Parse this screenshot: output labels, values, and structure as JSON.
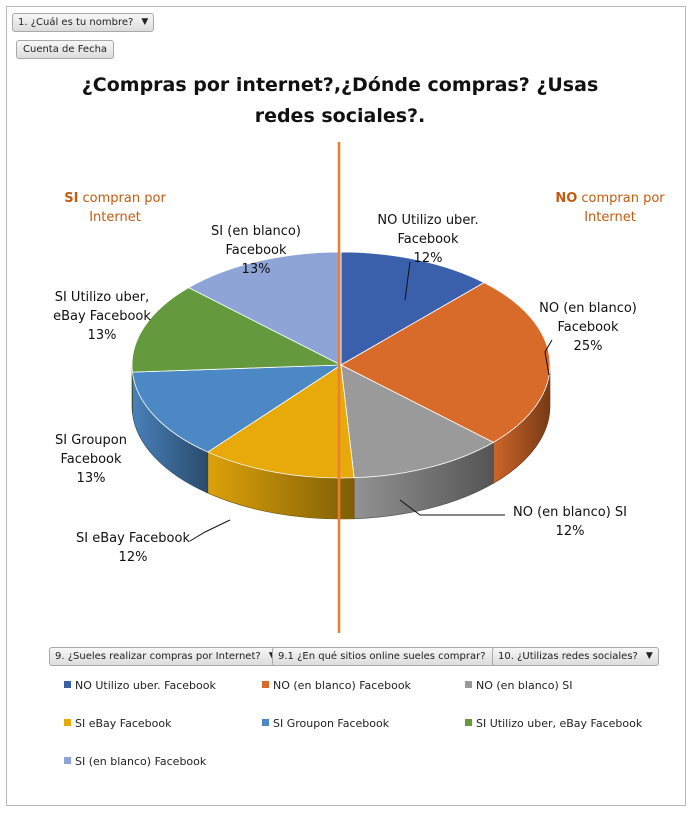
{
  "filters": {
    "top_field": "1. ¿Cuál es tu nombre?",
    "values_field": "Cuenta de Fecha",
    "axis_fields": [
      "9. ¿Sueles realizar compras por Internet?",
      "9.1 ¿En qué sitios online sueles comprar?",
      "10. ¿Utilizas redes sociales?"
    ]
  },
  "annotations": {
    "si_bold": "SI",
    "si_rest": " compran  por",
    "si_line2": "Internet",
    "no_bold": "NO",
    "no_rest": " compran  por",
    "no_line2": "Internet"
  },
  "colors": {
    "divider": "#ED7D31",
    "annotation_text": "#C55A11"
  },
  "chart_data": {
    "type": "pie",
    "title": "¿Compras por internet?,¿Dónde compras? ¿Usas redes sociales?.",
    "title_lines": [
      "¿Compras por internet?,¿Dónde compras? ¿Usas",
      "redes sociales?."
    ],
    "legend_position": "bottom",
    "slices": [
      {
        "name": "NO Utilizo uber. Facebook",
        "value": 12,
        "label_lines": [
          "NO Utilizo uber.",
          "Facebook",
          "12%"
        ],
        "color": "#3A5FAB"
      },
      {
        "name": "NO (en blanco) Facebook",
        "value": 25,
        "label_lines": [
          "NO (en blanco)",
          "Facebook",
          "25%"
        ],
        "color": "#D86A2A"
      },
      {
        "name": "NO (en blanco) SI",
        "value": 12,
        "label_lines": [
          "NO (en blanco) SI",
          "12%"
        ],
        "color": "#9A9A9A"
      },
      {
        "name": "SI eBay Facebook",
        "value": 12,
        "label_lines": [
          "SI eBay Facebook",
          "12%"
        ],
        "color": "#E8AA0A"
      },
      {
        "name": "SI Groupon Facebook",
        "value": 13,
        "label_lines": [
          "SI Groupon",
          "Facebook",
          "13%"
        ],
        "color": "#4C88C4"
      },
      {
        "name": "SI Utilizo uber, eBay Facebook",
        "value": 13,
        "label_lines": [
          "SI Utilizo uber,",
          "eBay Facebook",
          "13%"
        ],
        "color": "#64993D"
      },
      {
        "name": "SI (en blanco) Facebook",
        "value": 13,
        "label_lines": [
          "SI (en blanco)",
          "Facebook",
          "13%"
        ],
        "color": "#8EA3D6"
      }
    ]
  }
}
